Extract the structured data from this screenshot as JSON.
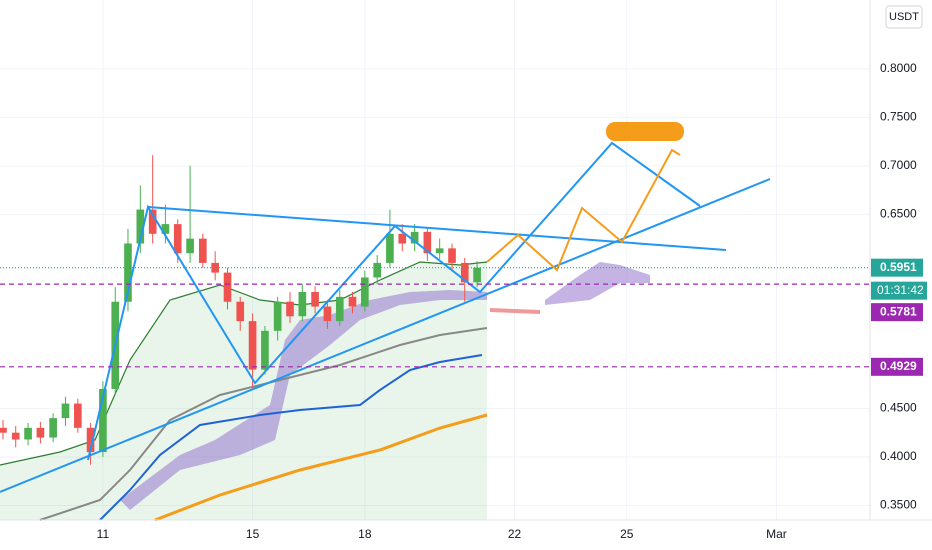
{
  "chart_data": {
    "type": "candlestick",
    "currency": "USDT",
    "x": [
      8.33,
      8.67,
      9,
      9.33,
      9.67,
      10,
      10.33,
      10.67,
      11,
      11.33,
      11.67,
      12,
      12.33,
      12.67,
      13,
      13.33,
      13.67,
      14,
      14.33,
      14.67,
      15,
      15.33,
      15.67,
      16,
      16.33,
      16.67,
      17,
      17.33,
      17.67,
      18,
      18.33,
      18.67,
      19,
      19.33,
      19.67,
      20,
      20.33,
      20.67,
      21
    ],
    "open": [
      0.43,
      0.425,
      0.418,
      0.43,
      0.42,
      0.44,
      0.455,
      0.43,
      0.405,
      0.47,
      0.56,
      0.62,
      0.655,
      0.63,
      0.64,
      0.61,
      0.625,
      0.6,
      0.59,
      0.56,
      0.54,
      0.49,
      0.53,
      0.56,
      0.545,
      0.57,
      0.555,
      0.54,
      0.565,
      0.555,
      0.585,
      0.6,
      0.63,
      0.62,
      0.632,
      0.61,
      0.615,
      0.6,
      0.58
    ],
    "high": [
      0.438,
      0.432,
      0.435,
      0.436,
      0.445,
      0.462,
      0.46,
      0.435,
      0.478,
      0.575,
      0.635,
      0.68,
      0.711,
      0.66,
      0.645,
      0.7,
      0.63,
      0.612,
      0.595,
      0.565,
      0.548,
      0.535,
      0.565,
      0.57,
      0.578,
      0.576,
      0.562,
      0.572,
      0.57,
      0.592,
      0.608,
      0.655,
      0.64,
      0.64,
      0.636,
      0.625,
      0.62,
      0.605,
      0.602
    ],
    "low": [
      0.418,
      0.41,
      0.412,
      0.414,
      0.415,
      0.432,
      0.425,
      0.392,
      0.4,
      0.465,
      0.55,
      0.61,
      0.62,
      0.62,
      0.6,
      0.6,
      0.595,
      0.582,
      0.552,
      0.53,
      0.47,
      0.485,
      0.52,
      0.538,
      0.54,
      0.548,
      0.532,
      0.535,
      0.548,
      0.55,
      0.578,
      0.595,
      0.612,
      0.612,
      0.602,
      0.604,
      0.592,
      0.56,
      0.575
    ],
    "close": [
      0.425,
      0.418,
      0.43,
      0.42,
      0.44,
      0.455,
      0.43,
      0.405,
      0.47,
      0.56,
      0.62,
      0.655,
      0.63,
      0.64,
      0.61,
      0.625,
      0.6,
      0.59,
      0.56,
      0.54,
      0.49,
      0.53,
      0.56,
      0.545,
      0.57,
      0.555,
      0.54,
      0.565,
      0.555,
      0.585,
      0.6,
      0.63,
      0.62,
      0.632,
      0.61,
      0.615,
      0.6,
      0.58,
      0.5951
    ],
    "up_color": "#4caf50",
    "down_color": "#ef5350",
    "xlim": [
      8.25,
      31.5
    ],
    "xticks": [
      11,
      15,
      18,
      22,
      25,
      {
        "value": 29,
        "label": "Mar"
      }
    ],
    "ylim": [
      0.335,
      0.871
    ],
    "yticks": [
      {
        "value": 0.35,
        "label": "0.3500"
      },
      {
        "value": 0.4,
        "label": "0.4000"
      },
      {
        "value": 0.45,
        "label": "0.4500"
      },
      {
        "value": 0.65,
        "label": "0.6500"
      },
      {
        "value": 0.7,
        "label": "0.7000"
      },
      {
        "value": 0.75,
        "label": "0.7500"
      },
      {
        "value": 0.8,
        "label": "0.8000"
      }
    ],
    "grid": true,
    "price_lines": [
      {
        "value": 0.5951,
        "color": "#26a69a",
        "style": "dotted"
      },
      {
        "value": 0.5781,
        "color": "#9c27b0",
        "style": "dashed"
      },
      {
        "value": 0.4929,
        "color": "#9c27b0",
        "style": "dashed"
      }
    ],
    "countdown": "01:31:42"
  }
}
